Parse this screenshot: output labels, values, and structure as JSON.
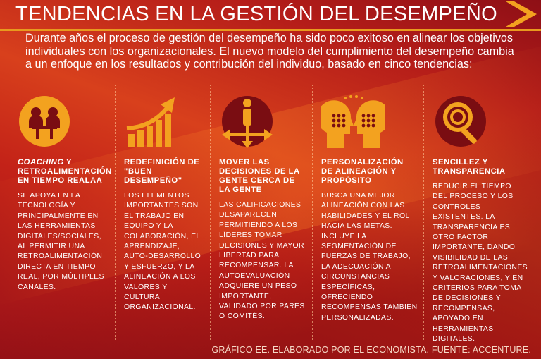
{
  "header": {
    "title": "TENDENCIAS EN LA GESTIÓN DEL DESEMPEÑO",
    "intro": "Durante años el proceso de gestión del desempeño ha sido poco exitoso en alinear los objetivos individuales con los organizacionales. El nuevo modelo del cumplimiento del desempeño cambia a un enfoque en los resultados y contribución del individuo, basado en cinco tendencias:"
  },
  "colors": {
    "background": "#a8141b",
    "accent_orange": "#f3a21f",
    "icon_dark": "#7a0d12",
    "text": "#ffffff"
  },
  "columns": [
    {
      "icon": "meeting-people-icon",
      "heading_italic": "COACHING",
      "heading": " Y RETROALIMENTACIÓN EN TIEMPO REALAA",
      "body": "SE APOYA EN LA TECNOLOGÍA Y PRINCIPALMENTE EN LAS HERRAMIENTAS DIGITALES/SOCIALES, AL PERMITIR UNA RETROALIMENTACIÓN DIRECTA EN TIEMPO REAL, POR MÚLTIPLES CANALES."
    },
    {
      "icon": "growth-chart-icon",
      "heading_italic": "",
      "heading": "REDEFINICIÓN DE \"BUEN DESEMPEÑO\"",
      "body": "LOS ELEMENTOS IMPORTANTES SON EL TRABAJO EN EQUIPO Y LA COLABORACIÓN, EL APRENDIZAJE, AUTO-DESARROLLO Y ESFUERZO, Y LA ALINEACIÓN A LOS VALORES Y CULTURA ORGANIZACIONAL."
    },
    {
      "icon": "person-arrows-icon",
      "heading_italic": "",
      "heading": "MOVER LAS DECISIONES DE LA GENTE CERCA DE LA GENTE",
      "body": "LAS CALIFICACIONES DESAPARECEN PERMITIENDO A LOS LÍDERES TOMAR DECISIONES Y MAYOR LIBERTAD PARA RECOMPENSAR. LA AUTOEVALUACIÓN ADQUIERE UN PESO IMPORTANTE, VALIDADO POR PARES O COMITÉS."
    },
    {
      "icon": "two-heads-icon",
      "heading_italic": "",
      "heading": "PERSONALIZACIÓN DE ALINEACIÓN Y PROPÓSITO",
      "body": "BUSCA UNA MEJOR ALINEACIÓN CON LAS HABILIDADES Y EL ROL HACIA LAS METAS. INCLUYE LA SEGMENTACIÓN DE FUERZAS DE TRABAJO, LA ADECUACIÓN A CIRCUNSTANCIAS ESPECÍFICAS, OFRECIENDO RECOMPENSAS TAMBIÉN PERSONALIZADAS."
    },
    {
      "icon": "magnifier-icon",
      "heading_italic": "",
      "heading": "SENCILLEZ Y TRANSPARENCIA",
      "body": "REDUCIR EL TIEMPO DEL PROCESO Y LOS CONTROLES EXISTENTES. LA TRANSPARENCIA ES OTRO FACTOR IMPORTANTE, DANDO VISIBILIDAD DE LAS RETROALIMENTACIONES Y VALORACIONES, Y EN CRITERIOS PARA TOMA DE DECISIONES Y RECOMPENSAS, APOYADO EN HERRAMIENTAS DIGITALES."
    }
  ],
  "footer": {
    "credit": "GRÁFICO EE. ELABORADO POR EL ECONOMISTA. FUENTE: ACCENTURE."
  }
}
